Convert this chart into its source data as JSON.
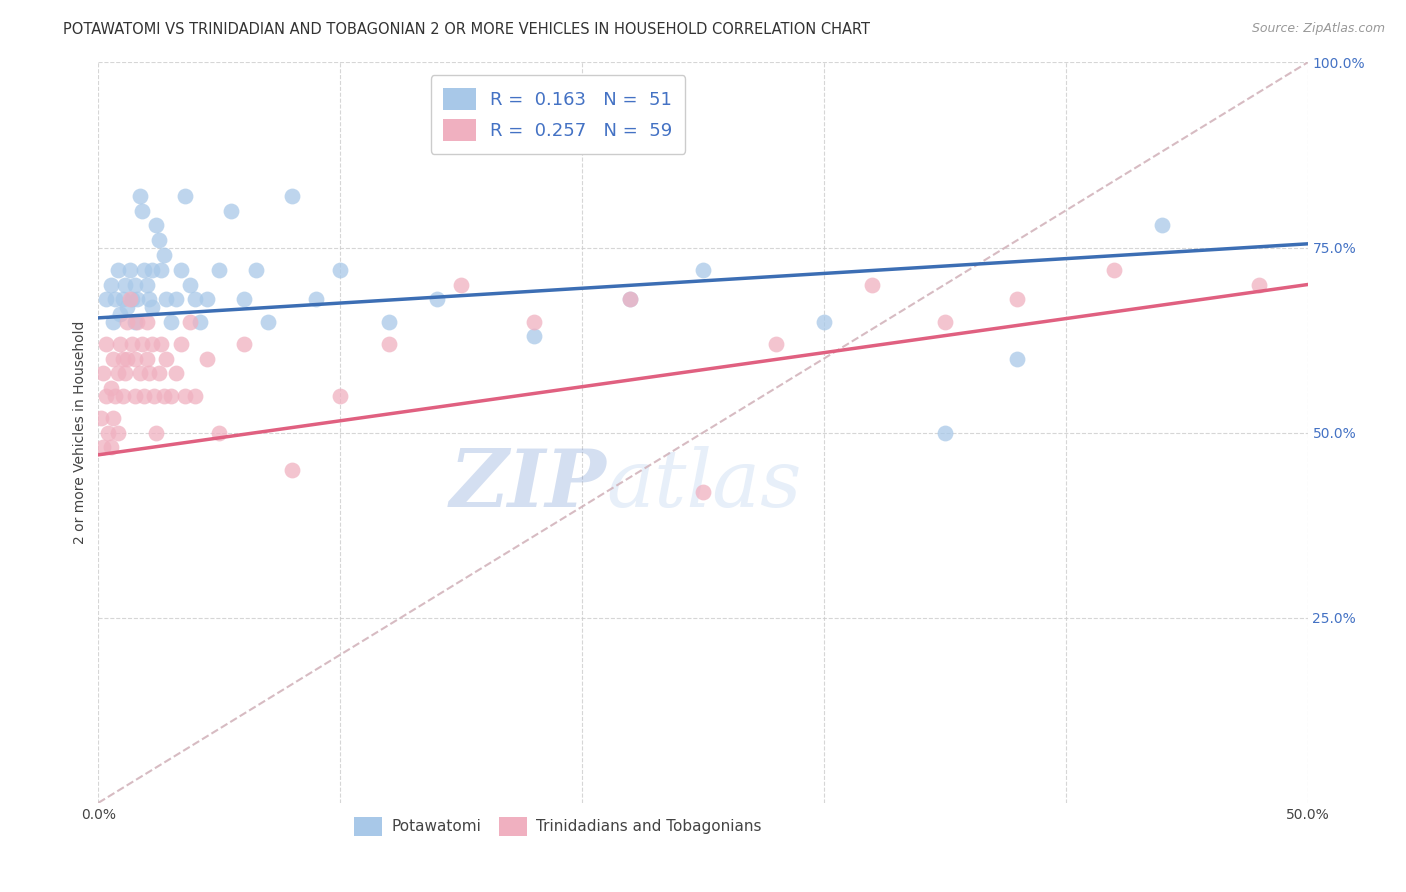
{
  "title": "POTAWATOMI VS TRINIDADIAN AND TOBAGONIAN 2 OR MORE VEHICLES IN HOUSEHOLD CORRELATION CHART",
  "source_text": "Source: ZipAtlas.com",
  "ylabel": "2 or more Vehicles in Household",
  "xlim": [
    0,
    0.5
  ],
  "ylim": [
    0,
    1.0
  ],
  "r_blue": 0.163,
  "n_blue": 51,
  "r_pink": 0.257,
  "n_pink": 59,
  "blue_color": "#a8c8e8",
  "pink_color": "#f0b0c0",
  "trendline_blue": "#3c6eb4",
  "trendline_pink": "#e06080",
  "trendline_dashed_color": "#d0b0b8",
  "legend_label_blue": "Potawatomi",
  "legend_label_pink": "Trinidadians and Tobagonians",
  "watermark_zip": "ZIP",
  "watermark_atlas": "atlas",
  "title_fontsize": 10.5,
  "source_fontsize": 9,
  "ylabel_fontsize": 10,
  "tick_fontsize": 10,
  "legend_fontsize": 13,
  "blue_scatter_x": [
    0.003,
    0.005,
    0.006,
    0.007,
    0.008,
    0.009,
    0.01,
    0.011,
    0.012,
    0.013,
    0.014,
    0.015,
    0.015,
    0.016,
    0.017,
    0.018,
    0.019,
    0.02,
    0.021,
    0.022,
    0.022,
    0.024,
    0.025,
    0.026,
    0.027,
    0.028,
    0.03,
    0.032,
    0.034,
    0.036,
    0.038,
    0.04,
    0.042,
    0.045,
    0.05,
    0.055,
    0.06,
    0.065,
    0.07,
    0.08,
    0.09,
    0.1,
    0.12,
    0.14,
    0.18,
    0.22,
    0.25,
    0.3,
    0.35,
    0.38,
    0.44
  ],
  "blue_scatter_y": [
    0.68,
    0.7,
    0.65,
    0.68,
    0.72,
    0.66,
    0.68,
    0.7,
    0.67,
    0.72,
    0.68,
    0.7,
    0.65,
    0.68,
    0.82,
    0.8,
    0.72,
    0.7,
    0.68,
    0.72,
    0.67,
    0.78,
    0.76,
    0.72,
    0.74,
    0.68,
    0.65,
    0.68,
    0.72,
    0.82,
    0.7,
    0.68,
    0.65,
    0.68,
    0.72,
    0.8,
    0.68,
    0.72,
    0.65,
    0.82,
    0.68,
    0.72,
    0.65,
    0.68,
    0.63,
    0.68,
    0.72,
    0.65,
    0.5,
    0.6,
    0.78
  ],
  "pink_scatter_x": [
    0.001,
    0.002,
    0.002,
    0.003,
    0.003,
    0.004,
    0.005,
    0.005,
    0.006,
    0.006,
    0.007,
    0.008,
    0.008,
    0.009,
    0.01,
    0.01,
    0.011,
    0.012,
    0.012,
    0.013,
    0.014,
    0.015,
    0.015,
    0.016,
    0.017,
    0.018,
    0.019,
    0.02,
    0.02,
    0.021,
    0.022,
    0.023,
    0.024,
    0.025,
    0.026,
    0.027,
    0.028,
    0.03,
    0.032,
    0.034,
    0.036,
    0.038,
    0.04,
    0.045,
    0.05,
    0.06,
    0.08,
    0.1,
    0.12,
    0.15,
    0.18,
    0.22,
    0.25,
    0.28,
    0.32,
    0.35,
    0.38,
    0.42,
    0.48
  ],
  "pink_scatter_y": [
    0.52,
    0.48,
    0.58,
    0.55,
    0.62,
    0.5,
    0.48,
    0.56,
    0.6,
    0.52,
    0.55,
    0.58,
    0.5,
    0.62,
    0.6,
    0.55,
    0.58,
    0.65,
    0.6,
    0.68,
    0.62,
    0.6,
    0.55,
    0.65,
    0.58,
    0.62,
    0.55,
    0.6,
    0.65,
    0.58,
    0.62,
    0.55,
    0.5,
    0.58,
    0.62,
    0.55,
    0.6,
    0.55,
    0.58,
    0.62,
    0.55,
    0.65,
    0.55,
    0.6,
    0.5,
    0.62,
    0.45,
    0.55,
    0.62,
    0.7,
    0.65,
    0.68,
    0.42,
    0.62,
    0.7,
    0.65,
    0.68,
    0.72,
    0.7
  ],
  "blue_trendline_x0": 0.0,
  "blue_trendline_y0": 0.655,
  "blue_trendline_x1": 0.5,
  "blue_trendline_y1": 0.755,
  "pink_trendline_x0": 0.0,
  "pink_trendline_y0": 0.47,
  "pink_trendline_x1": 0.5,
  "pink_trendline_y1": 0.7
}
